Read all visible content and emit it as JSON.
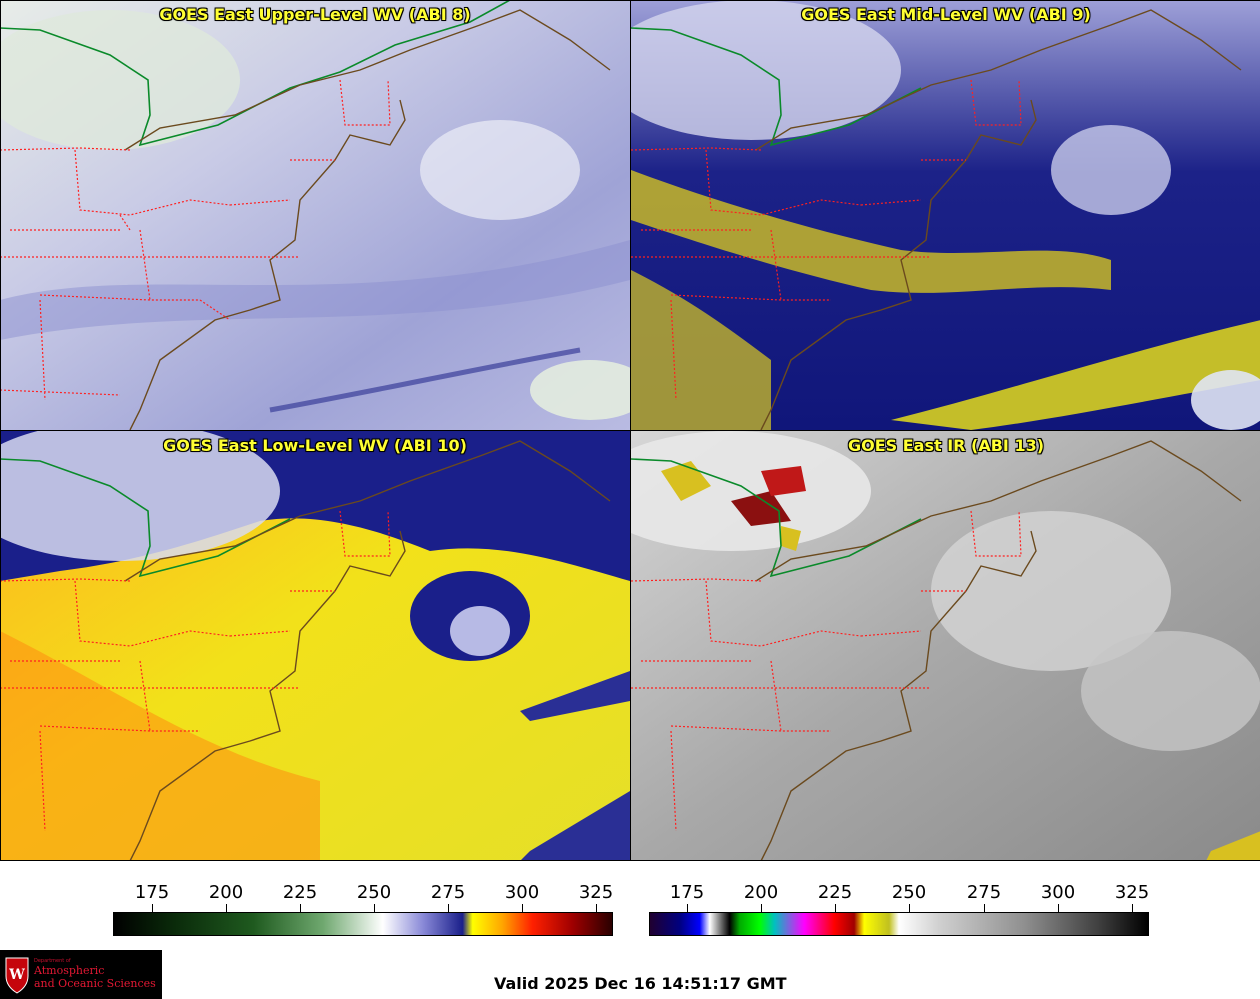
{
  "panels": [
    {
      "title": "GOES East Upper-Level WV (ABI 8)",
      "palette": "wv-upper"
    },
    {
      "title": "GOES East Mid-Level WV (ABI 9)",
      "palette": "wv-mid"
    },
    {
      "title": "GOES East Low-Level WV (ABI 10)",
      "palette": "wv-low"
    },
    {
      "title": "GOES East IR (ABI 13)",
      "palette": "ir"
    }
  ],
  "colorbars": {
    "wv": {
      "ticks": [
        "175",
        "200",
        "225",
        "250",
        "275",
        "300",
        "325"
      ]
    },
    "ir": {
      "ticks": [
        "175",
        "200",
        "225",
        "250",
        "275",
        "300",
        "325"
      ]
    }
  },
  "logo": {
    "dept": "Department of",
    "line1": "Atmospheric",
    "line2": "and Oceanic Sciences"
  },
  "valid_time": "Valid 2025 Dec 16 14:51:17 GMT",
  "colors": {
    "coast": "#6b4a1e",
    "state_border": "#ff2020",
    "intl_border": "#0a8a2a",
    "title": "#ffff33"
  }
}
